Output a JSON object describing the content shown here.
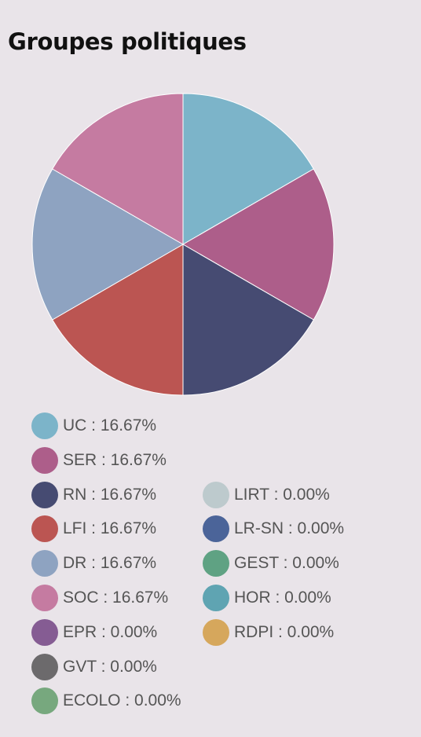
{
  "title": "Groupes politiques",
  "chart_data": {
    "type": "pie",
    "title": "Groupes politiques",
    "slices": [
      {
        "label": "UC",
        "value": 16.67,
        "display": "UC : 16.67%",
        "color": "#7cb4c9"
      },
      {
        "label": "SER",
        "value": 16.67,
        "display": "SER : 16.67%",
        "color": "#ad5e8a"
      },
      {
        "label": "RN",
        "value": 16.67,
        "display": "RN : 16.67%",
        "color": "#464b72"
      },
      {
        "label": "LFI",
        "value": 16.67,
        "display": "LFI : 16.67%",
        "color": "#bb5552"
      },
      {
        "label": "DR",
        "value": 16.67,
        "display": "DR : 16.67%",
        "color": "#8ea3c1"
      },
      {
        "label": "SOC",
        "value": 16.67,
        "display": "SOC : 16.67%",
        "color": "#c57ba1"
      },
      {
        "label": "EPR",
        "value": 0.0,
        "display": "EPR : 0.00%",
        "color": "#855c93"
      },
      {
        "label": "GVT",
        "value": 0.0,
        "display": "GVT : 0.00%",
        "color": "#6c6a6c"
      },
      {
        "label": "ECOLO",
        "value": 0.0,
        "display": "ECOLO : 0.00%",
        "color": "#77a87e"
      },
      {
        "label": "LIRT",
        "value": 0.0,
        "display": "LIRT : 0.00%",
        "color": "#bdcacd"
      },
      {
        "label": "LR-SN",
        "value": 0.0,
        "display": "LR-SN : 0.00%",
        "color": "#4b6499"
      },
      {
        "label": "GEST",
        "value": 0.0,
        "display": "GEST : 0.00%",
        "color": "#5fa283"
      },
      {
        "label": "HOR",
        "value": 0.0,
        "display": "HOR : 0.00%",
        "color": "#5fa4b2"
      },
      {
        "label": "RDPI",
        "value": 0.0,
        "display": "RDPI : 0.00%",
        "color": "#d6a75c"
      }
    ],
    "legend_placement": "bottom",
    "slice_border_color": "#ffffff"
  }
}
